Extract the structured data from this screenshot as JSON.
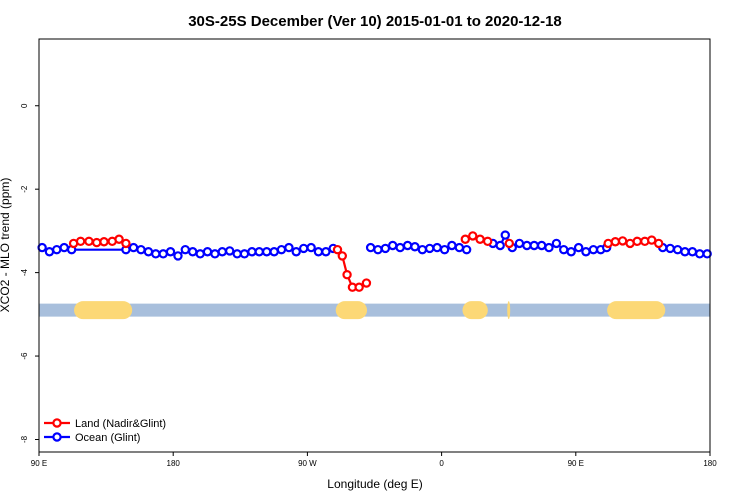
{
  "chart_data": {
    "type": "line",
    "title": "30S-25S December (Ver 10)   2015-01-01 to 2020-12-18",
    "xlabel": "Longitude (deg E)",
    "ylabel": "XCO2 - MLO trend (ppm)",
    "xlim": [
      90,
      540
    ],
    "ylim": [
      -8.3,
      1.6
    ],
    "x_ticks": [
      {
        "value": 90,
        "label": "90 E"
      },
      {
        "value": 180,
        "label": "180"
      },
      {
        "value": 270,
        "label": "90 W"
      },
      {
        "value": 360,
        "label": "0"
      },
      {
        "value": 450,
        "label": "90 E"
      },
      {
        "value": 540,
        "label": "180"
      }
    ],
    "y_ticks": [
      {
        "value": 0,
        "label": "0"
      },
      {
        "value": -2,
        "label": "-2"
      },
      {
        "value": -4,
        "label": "-4"
      },
      {
        "value": -6,
        "label": "-6"
      },
      {
        "value": -8,
        "label": "-8"
      }
    ],
    "legend_position": "bottom-left",
    "series": [
      {
        "name": "Land (Nadir&Glint)",
        "color": "#ff0000",
        "segments": [
          [
            [
              113.2,
              -3.3
            ],
            [
              117.9,
              -3.25
            ],
            [
              123.5,
              -3.25
            ],
            [
              128.7,
              -3.28
            ],
            [
              133.6,
              -3.26
            ],
            [
              139.1,
              -3.25
            ],
            [
              143.7,
              -3.2
            ],
            [
              148.3,
              -3.3
            ]
          ],
          [
            [
              290.2,
              -3.45
            ],
            [
              293.4,
              -3.6
            ],
            [
              296.6,
              -4.05
            ],
            [
              300.2,
              -4.35
            ],
            [
              304.7,
              -4.35
            ],
            [
              309.6,
              -4.25
            ]
          ],
          [
            [
              375.9,
              -3.2
            ],
            [
              380.9,
              -3.12
            ],
            [
              385.8,
              -3.2
            ],
            [
              390.9,
              -3.25
            ]
          ],
          [
            [
              405.4,
              -3.3
            ]
          ],
          [
            [
              471.7,
              -3.3
            ],
            [
              476.5,
              -3.26
            ],
            [
              481.4,
              -3.24
            ],
            [
              486.4,
              -3.3
            ],
            [
              491.2,
              -3.25
            ],
            [
              496.3,
              -3.25
            ],
            [
              500.9,
              -3.22
            ],
            [
              505.6,
              -3.3
            ]
          ]
        ]
      },
      {
        "name": "Ocean (Glint)",
        "color": "#0000ff",
        "segments": [
          [
            [
              92.1,
              -3.4
            ],
            [
              97.0,
              -3.5
            ],
            [
              101.9,
              -3.45
            ],
            [
              106.9,
              -3.4
            ],
            [
              111.9,
              -3.45
            ],
            [
              148.3,
              -3.45
            ],
            [
              153.4,
              -3.4
            ],
            [
              158.4,
              -3.45
            ],
            [
              163.4,
              -3.5
            ],
            [
              168.3,
              -3.55
            ],
            [
              173.3,
              -3.55
            ],
            [
              178.2,
              -3.5
            ],
            [
              183.2,
              -3.6
            ],
            [
              188.1,
              -3.45
            ],
            [
              193.1,
              -3.5
            ],
            [
              198.1,
              -3.55
            ],
            [
              203.0,
              -3.5
            ],
            [
              208.0,
              -3.55
            ],
            [
              212.9,
              -3.5
            ],
            [
              217.9,
              -3.48
            ],
            [
              222.9,
              -3.55
            ],
            [
              227.8,
              -3.55
            ],
            [
              232.8,
              -3.5
            ],
            [
              237.7,
              -3.5
            ],
            [
              242.7,
              -3.5
            ],
            [
              247.7,
              -3.5
            ],
            [
              252.6,
              -3.45
            ],
            [
              257.6,
              -3.4
            ],
            [
              262.5,
              -3.5
            ],
            [
              267.5,
              -3.42
            ],
            [
              272.5,
              -3.4
            ],
            [
              277.4,
              -3.5
            ],
            [
              282.4,
              -3.5
            ],
            [
              287.3,
              -3.42
            ]
          ],
          [
            [
              312.4,
              -3.4
            ],
            [
              317.3,
              -3.45
            ],
            [
              322.3,
              -3.42
            ],
            [
              327.2,
              -3.35
            ],
            [
              332.2,
              -3.4
            ],
            [
              337.2,
              -3.35
            ],
            [
              342.1,
              -3.38
            ],
            [
              347.1,
              -3.45
            ],
            [
              352.0,
              -3.42
            ],
            [
              357.0,
              -3.4
            ],
            [
              362.0,
              -3.45
            ],
            [
              366.9,
              -3.35
            ],
            [
              371.9,
              -3.4
            ],
            [
              376.8,
              -3.45
            ]
          ],
          [
            [
              394.4,
              -3.3
            ],
            [
              399.3,
              -3.35
            ],
            [
              402.7,
              -3.1
            ],
            [
              407.4,
              -3.4
            ],
            [
              412.2,
              -3.3
            ],
            [
              417.2,
              -3.35
            ],
            [
              422.1,
              -3.35
            ],
            [
              427.1,
              -3.35
            ],
            [
              432.0,
              -3.4
            ],
            [
              437.0,
              -3.3
            ],
            [
              441.9,
              -3.45
            ],
            [
              446.9,
              -3.5
            ],
            [
              451.9,
              -3.4
            ],
            [
              456.8,
              -3.5
            ],
            [
              461.8,
              -3.45
            ],
            [
              466.7,
              -3.45
            ],
            [
              470.7,
              -3.4
            ]
          ],
          [
            [
              508.3,
              -3.4
            ],
            [
              513.3,
              -3.42
            ],
            [
              518.3,
              -3.45
            ],
            [
              523.2,
              -3.5
            ],
            [
              528.2,
              -3.5
            ],
            [
              533.1,
              -3.55
            ],
            [
              538.1,
              -3.55
            ]
          ]
        ]
      }
    ],
    "land_ocean_band": {
      "y": -4.9,
      "ocean_color": "#a8bfdc",
      "land_color": "#fcd876",
      "land_ranges": [
        [
          113.5,
          152.5
        ],
        [
          289.0,
          310.0
        ],
        [
          374.0,
          391.0
        ],
        [
          404.0,
          406.0
        ],
        [
          471.0,
          510.0
        ]
      ]
    }
  }
}
